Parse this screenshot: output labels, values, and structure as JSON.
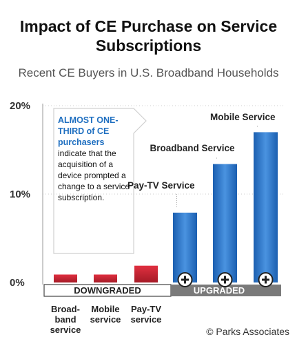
{
  "title": "Impact of CE Purchase on Service Subscriptions",
  "subtitle": "Recent CE Buyers in U.S. Broadband Households",
  "credit": "© Parks Associates",
  "callout": {
    "highlight": "ALMOST ONE-THIRD of CE purchasers",
    "body": "indicate that the acquisition of a device prompted a change to a service subscription."
  },
  "chart_data": {
    "type": "bar",
    "title": "Impact of CE Purchase on Service Subscriptions",
    "subtitle": "Recent CE Buyers in U.S. Broadband Households",
    "ylim": [
      0,
      20
    ],
    "yticks": [
      "0%",
      "10%",
      "20%"
    ],
    "groups": [
      {
        "name": "DOWNGRADED",
        "color": "#cc2233",
        "categories": [
          "Broad-band service",
          "Mobile service",
          "Pay-TV service"
        ],
        "values": [
          0.9,
          0.9,
          1.9
        ]
      },
      {
        "name": "UPGRADED",
        "color": "#2e78c8",
        "categories": [
          "Pay-TV Service",
          "Broadband Service",
          "Mobile Service"
        ],
        "values": [
          7.9,
          13.4,
          17.0
        ]
      }
    ],
    "down_labels": [
      [
        "Broad-",
        "band",
        "service"
      ],
      [
        "Mobile",
        "service"
      ],
      [
        "Pay-TV",
        "service"
      ]
    ],
    "up_labels": [
      "Pay-TV Service",
      "Broadband Service",
      "Mobile Service"
    ]
  }
}
